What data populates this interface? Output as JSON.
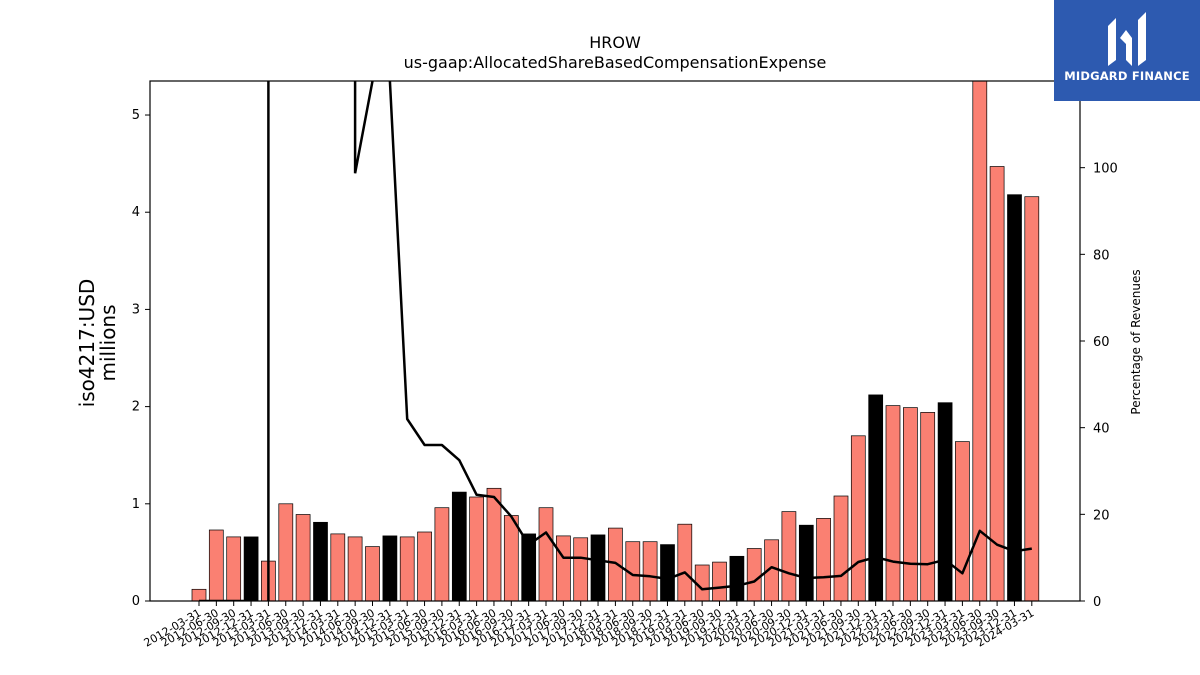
{
  "logo": {
    "text": "MIDGARD FINANCE"
  },
  "chart_data": {
    "type": "bar",
    "title": "HROW",
    "subtitle": "us-gaap:AllocatedShareBasedCompensationExpense",
    "ylabel": "iso4217:USD",
    "ylabel_unit": "millions",
    "y2label": "Percentage of Revenues",
    "ylim": [
      0,
      5.35
    ],
    "y2lim": [
      0,
      120
    ],
    "yticks": [
      "0",
      "1",
      "2",
      "3",
      "4",
      "5"
    ],
    "y2ticks": [
      "0",
      "20",
      "40",
      "60",
      "80",
      "100"
    ],
    "colors": {
      "quarter": "#fa8072",
      "annual": "#000000",
      "line": "#000000"
    },
    "categories": [
      "2012-03-31",
      "2012-06-30",
      "2012-09-30",
      "2012-12-31",
      "2013-03-31",
      "2013-06-30",
      "2013-09-30",
      "2013-12-31",
      "2014-03-31",
      "2014-06-30",
      "2014-09-30",
      "2014-12-31",
      "2015-03-31",
      "2015-06-30",
      "2015-09-30",
      "2015-12-31",
      "2016-03-31",
      "2016-06-30",
      "2016-09-30",
      "2016-12-31",
      "2017-03-31",
      "2017-06-30",
      "2017-09-30",
      "2017-12-31",
      "2018-03-31",
      "2018-06-30",
      "2018-09-30",
      "2018-12-31",
      "2019-03-31",
      "2019-06-30",
      "2019-09-30",
      "2019-12-31",
      "2020-03-31",
      "2020-06-30",
      "2020-09-30",
      "2020-12-31",
      "2021-03-31",
      "2021-06-30",
      "2021-09-30",
      "2021-12-31",
      "2022-03-31",
      "2022-06-30",
      "2022-09-30",
      "2022-12-31",
      "2023-03-31",
      "2023-06-30",
      "2023-09-30",
      "2023-12-31",
      "2024-03-31"
    ],
    "xtick_labels": [
      "2012-03-31",
      "2012-06-30",
      "2012-09-30",
      "2012-12-31",
      "2013-03-31",
      "2013-06-30",
      "2013-09-30",
      "2013-12-31",
      "2014-03-31",
      "2014-06-30",
      "2014-09-30",
      "2014-12-31",
      "2015-03-31",
      "2015-06-30",
      "2015-09-30",
      "2015-12-31",
      "2016-03-31",
      "2016-06-30",
      "2016-09-30",
      "2016-12-31",
      "2017-03-31",
      "2017-06-30",
      "2017-09-30",
      "2017-12-31",
      "2018-03-31",
      "2018-06-30",
      "2018-09-30",
      "2018-12-31",
      "2019-03-31",
      "2019-06-30",
      "2019-09-30",
      "2019-12-31",
      "2020-03-31",
      "2020-06-30",
      "2020-09-30",
      "2020-12-31",
      "2021-03-31",
      "2021-06-30",
      "2021-09-30",
      "2021-12-31",
      "2022-03-31",
      "2022-06-30",
      "2022-09-30",
      "2022-12-31",
      "2023-03-31",
      "2023-06-30",
      "2023-09-30",
      "2023-12-31",
      "2024-03-31"
    ],
    "series": [
      {
        "kind": "bar",
        "values": [
          0.12,
          0.73,
          0.66,
          0.66,
          0.41,
          1.0,
          0.89,
          0.81,
          0.69,
          0.66,
          0.56,
          0.67,
          0.66,
          0.71,
          0.96,
          1.12,
          1.07,
          1.16,
          0.88,
          0.69,
          0.96,
          0.67,
          0.65,
          0.68,
          0.75,
          0.61,
          0.61,
          0.58,
          0.79,
          0.37,
          0.4,
          0.46,
          0.54,
          0.63,
          0.92,
          0.78,
          0.85,
          1.08,
          1.7,
          2.12,
          2.01,
          1.99,
          1.94,
          2.04,
          1.64,
          5.35,
          4.47,
          4.18,
          4.16
        ],
        "annual": [
          false,
          false,
          false,
          true,
          false,
          false,
          false,
          true,
          false,
          false,
          false,
          true,
          false,
          false,
          false,
          true,
          false,
          false,
          false,
          true,
          false,
          false,
          false,
          true,
          false,
          false,
          false,
          true,
          false,
          false,
          false,
          true,
          false,
          false,
          false,
          true,
          false,
          false,
          false,
          true,
          false,
          false,
          false,
          true,
          false,
          false,
          false,
          true,
          false
        ]
      },
      {
        "kind": "line",
        "axis": "right",
        "values": [
          null,
          null,
          null,
          null,
          null,
          null,
          null,
          null,
          null,
          null,
          98.7,
          null,
          42.0,
          36.0,
          36.0,
          32.5,
          24.5,
          24.0,
          19.5,
          13.0,
          15.8,
          10.0,
          10.0,
          9.4,
          8.8,
          6.0,
          5.7,
          5.1,
          6.6,
          2.7,
          3.1,
          3.5,
          4.5,
          7.8,
          6.4,
          5.3,
          5.5,
          5.8,
          9.0,
          10.1,
          9.1,
          8.6,
          8.5,
          9.5,
          6.4,
          16.2,
          13.0,
          11.5,
          12.1
        ]
      }
    ]
  }
}
